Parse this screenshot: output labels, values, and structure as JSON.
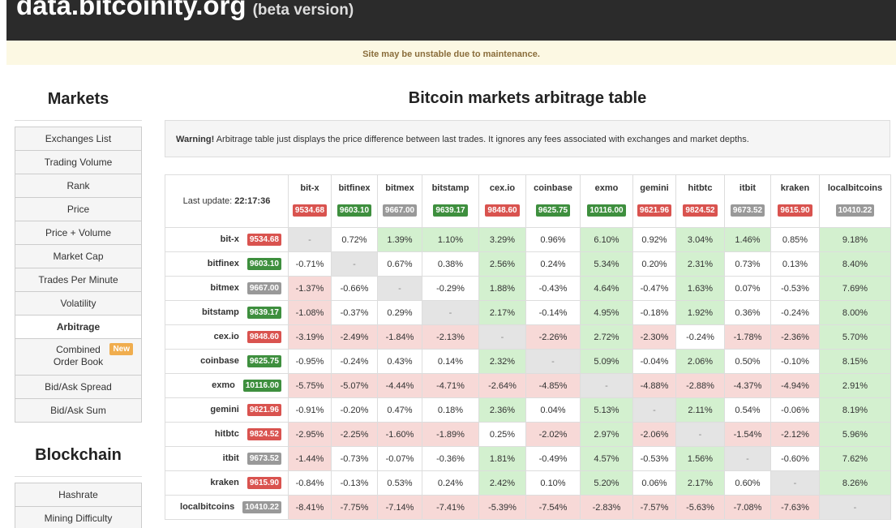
{
  "header": {
    "site": "data.bitcoinity.org",
    "beta": "(beta version)"
  },
  "notice": "Site may be unstable due to maintenance.",
  "sidebar": {
    "markets_title": "Markets",
    "markets": [
      "Exchanges List",
      "Trading Volume",
      "Rank",
      "Price",
      "Price + Volume",
      "Market Cap",
      "Trades Per Minute",
      "Volatility",
      "Arbitrage",
      "Combined Order Book",
      "Bid/Ask Spread",
      "Bid/Ask Sum"
    ],
    "active": "Arbitrage",
    "new_badge": "New",
    "new_item": "Combined Order Book",
    "blockchain_title": "Blockchain",
    "blockchain": [
      "Hashrate",
      "Mining Difficulty"
    ]
  },
  "main": {
    "title": "Bitcoin markets arbitrage table",
    "warning": {
      "label": "Warning!",
      "text": "Arbitrage table just displays the price difference between last trades. It ignores any fees associated with exchanges and market depths."
    },
    "table": {
      "last_update_label": "Last update:",
      "last_update_time": "22:17:36",
      "exchanges": [
        {
          "name": "bit-x",
          "price": "9534.68",
          "color": "red"
        },
        {
          "name": "bitfinex",
          "price": "9603.10",
          "color": "green"
        },
        {
          "name": "bitmex",
          "price": "9667.00",
          "color": "grey"
        },
        {
          "name": "bitstamp",
          "price": "9639.17",
          "color": "green"
        },
        {
          "name": "cex.io",
          "price": "9848.60",
          "color": "red"
        },
        {
          "name": "coinbase",
          "price": "9625.75",
          "color": "green"
        },
        {
          "name": "exmo",
          "price": "10116.00",
          "color": "green"
        },
        {
          "name": "gemini",
          "price": "9621.96",
          "color": "red"
        },
        {
          "name": "hitbtc",
          "price": "9824.52",
          "color": "red"
        },
        {
          "name": "itbit",
          "price": "9673.52",
          "color": "grey"
        },
        {
          "name": "kraken",
          "price": "9615.90",
          "color": "red"
        },
        {
          "name": "localbitcoins",
          "price": "10410.22",
          "color": "grey"
        }
      ],
      "rows": [
        [
          "-",
          "0.72%",
          "1.39%",
          "1.10%",
          "3.29%",
          "0.96%",
          "6.10%",
          "0.92%",
          "3.04%",
          "1.46%",
          "0.85%",
          "9.18%"
        ],
        [
          "-0.71%",
          "-",
          "0.67%",
          "0.38%",
          "2.56%",
          "0.24%",
          "5.34%",
          "0.20%",
          "2.31%",
          "0.73%",
          "0.13%",
          "8.40%"
        ],
        [
          "-1.37%",
          "-0.66%",
          "-",
          "-0.29%",
          "1.88%",
          "-0.43%",
          "4.64%",
          "-0.47%",
          "1.63%",
          "0.07%",
          "-0.53%",
          "7.69%"
        ],
        [
          "-1.08%",
          "-0.37%",
          "0.29%",
          "-",
          "2.17%",
          "-0.14%",
          "4.95%",
          "-0.18%",
          "1.92%",
          "0.36%",
          "-0.24%",
          "8.00%"
        ],
        [
          "-3.19%",
          "-2.49%",
          "-1.84%",
          "-2.13%",
          "-",
          "-2.26%",
          "2.72%",
          "-2.30%",
          "-0.24%",
          "-1.78%",
          "-2.36%",
          "5.70%"
        ],
        [
          "-0.95%",
          "-0.24%",
          "0.43%",
          "0.14%",
          "2.32%",
          "-",
          "5.09%",
          "-0.04%",
          "2.06%",
          "0.50%",
          "-0.10%",
          "8.15%"
        ],
        [
          "-5.75%",
          "-5.07%",
          "-4.44%",
          "-4.71%",
          "-2.64%",
          "-4.85%",
          "-",
          "-4.88%",
          "-2.88%",
          "-4.37%",
          "-4.94%",
          "2.91%"
        ],
        [
          "-0.91%",
          "-0.20%",
          "0.47%",
          "0.18%",
          "2.36%",
          "0.04%",
          "5.13%",
          "-",
          "2.11%",
          "0.54%",
          "-0.06%",
          "8.19%"
        ],
        [
          "-2.95%",
          "-2.25%",
          "-1.60%",
          "-1.89%",
          "0.25%",
          "-2.02%",
          "2.97%",
          "-2.06%",
          "-",
          "-1.54%",
          "-2.12%",
          "5.96%"
        ],
        [
          "-1.44%",
          "-0.73%",
          "-0.07%",
          "-0.36%",
          "1.81%",
          "-0.49%",
          "4.57%",
          "-0.53%",
          "1.56%",
          "-",
          "-0.60%",
          "7.62%"
        ],
        [
          "-0.84%",
          "-0.13%",
          "0.53%",
          "0.24%",
          "2.42%",
          "0.10%",
          "5.20%",
          "0.06%",
          "2.17%",
          "0.60%",
          "-",
          "8.26%"
        ],
        [
          "-8.41%",
          "-7.75%",
          "-7.14%",
          "-7.41%",
          "-5.39%",
          "-7.54%",
          "-2.83%",
          "-7.57%",
          "-5.63%",
          "-7.08%",
          "-7.63%",
          "-"
        ]
      ]
    }
  }
}
